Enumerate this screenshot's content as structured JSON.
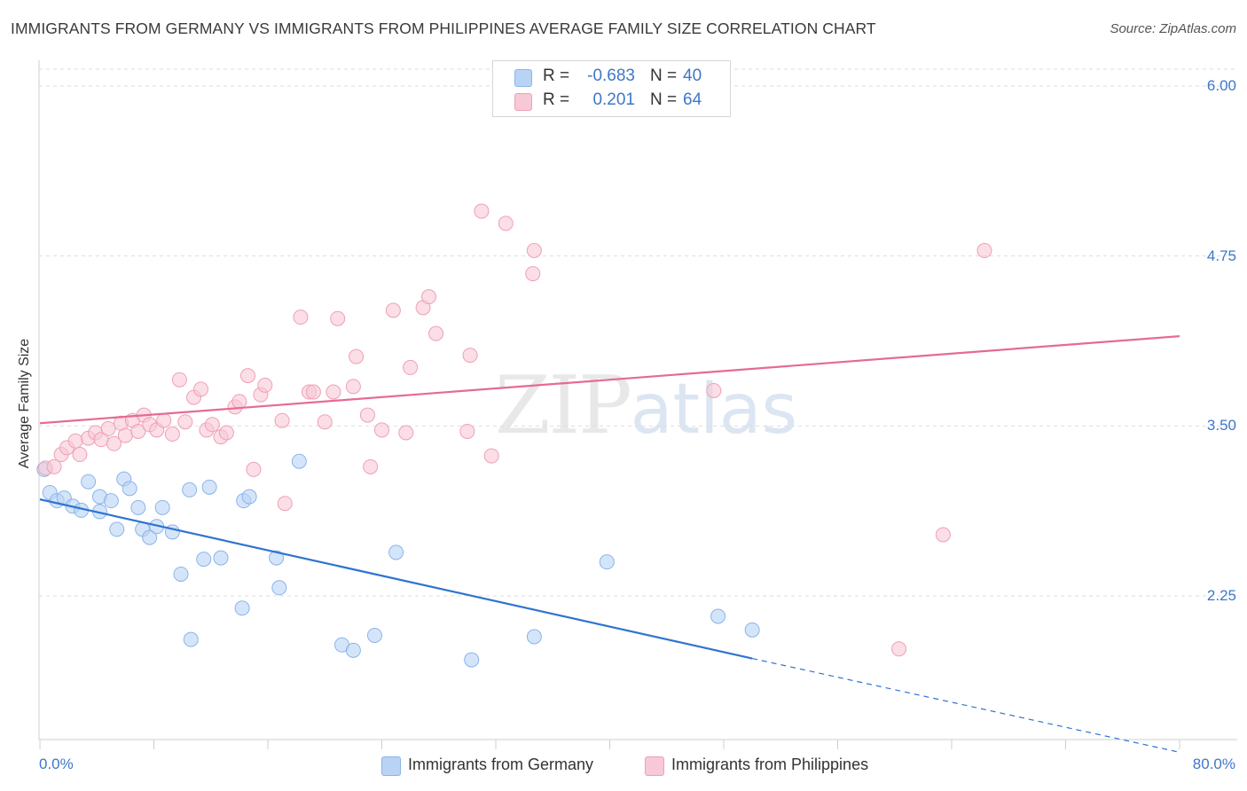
{
  "title": "IMMIGRANTS FROM GERMANY VS IMMIGRANTS FROM PHILIPPINES AVERAGE FAMILY SIZE CORRELATION CHART",
  "source": "Source: ZipAtlas.com",
  "watermark": {
    "zip": "ZIP",
    "atlas": "atlas"
  },
  "legend_top": {
    "rows": [
      {
        "r_label": "R =",
        "r_value": "-0.683",
        "n_label": "N =",
        "n_value": "40"
      },
      {
        "r_label": "R =",
        "r_value": "0.201",
        "n_label": "N =",
        "n_value": "64"
      }
    ]
  },
  "legend_bottom": {
    "germany": "Immigrants from Germany",
    "philippines": "Immigrants from Philippines"
  },
  "colors": {
    "germany_fill": "#b9d3f5",
    "germany_stroke": "#8ab4ea",
    "germany_line": "#2f74d0",
    "philippines_fill": "#f8c8d6",
    "philippines_stroke": "#eea0b8",
    "philippines_line": "#e56b93",
    "tick_text": "#3e77c9",
    "grid": "#dedede"
  },
  "chart_data": {
    "type": "scatter",
    "title": "IMMIGRANTS FROM GERMANY VS IMMIGRANTS FROM PHILIPPINES AVERAGE FAMILY SIZE CORRELATION CHART",
    "xlabel": "",
    "ylabel": "Average Family Size",
    "xlim": [
      0,
      80
    ],
    "ylim": [
      1.0,
      6.1
    ],
    "x_tick_labels": [
      "0.0%",
      "80.0%"
    ],
    "y_ticks": [
      2.25,
      3.5,
      4.75,
      6.0
    ],
    "y_tick_labels": [
      "2.25",
      "3.50",
      "4.75",
      "6.00"
    ],
    "grid": true,
    "legend_position": "top-center",
    "series": [
      {
        "name": "Immigrants from Germany",
        "r": -0.683,
        "n": 40,
        "points": [
          [
            0.3,
            3.18
          ],
          [
            0.7,
            3.01
          ],
          [
            1.2,
            2.95
          ],
          [
            1.7,
            2.97
          ],
          [
            2.3,
            2.91
          ],
          [
            2.9,
            2.88
          ],
          [
            3.4,
            3.09
          ],
          [
            4.2,
            2.87
          ],
          [
            4.2,
            2.98
          ],
          [
            5.0,
            2.95
          ],
          [
            5.4,
            2.74
          ],
          [
            5.9,
            3.11
          ],
          [
            6.3,
            3.04
          ],
          [
            6.9,
            2.9
          ],
          [
            7.2,
            2.74
          ],
          [
            7.7,
            2.68
          ],
          [
            8.2,
            2.76
          ],
          [
            8.6,
            2.9
          ],
          [
            9.3,
            2.72
          ],
          [
            9.9,
            2.41
          ],
          [
            10.5,
            3.03
          ],
          [
            10.6,
            1.93
          ],
          [
            11.5,
            2.52
          ],
          [
            11.9,
            3.05
          ],
          [
            12.7,
            2.53
          ],
          [
            14.2,
            2.16
          ],
          [
            14.3,
            2.95
          ],
          [
            14.7,
            2.98
          ],
          [
            16.6,
            2.53
          ],
          [
            16.8,
            2.31
          ],
          [
            18.2,
            3.24
          ],
          [
            21.2,
            1.89
          ],
          [
            22.0,
            1.85
          ],
          [
            23.5,
            1.96
          ],
          [
            25.0,
            2.57
          ],
          [
            30.3,
            1.78
          ],
          [
            34.7,
            1.95
          ],
          [
            39.8,
            2.5
          ],
          [
            47.6,
            2.1
          ],
          [
            50.0,
            2.0
          ]
        ],
        "trend": {
          "x0": 0,
          "y0": 2.96,
          "x1": 50,
          "y1": 1.79
        },
        "trend_dashed": {
          "x0": 50,
          "y0": 1.79,
          "x1": 80,
          "y1": 1.1
        }
      },
      {
        "name": "Immigrants from Philippines",
        "r": 0.201,
        "n": 64,
        "points": [
          [
            0.4,
            3.19
          ],
          [
            1.0,
            3.2
          ],
          [
            1.5,
            3.29
          ],
          [
            1.9,
            3.34
          ],
          [
            2.5,
            3.39
          ],
          [
            2.8,
            3.29
          ],
          [
            3.4,
            3.41
          ],
          [
            3.9,
            3.45
          ],
          [
            4.3,
            3.4
          ],
          [
            4.8,
            3.48
          ],
          [
            5.2,
            3.37
          ],
          [
            5.7,
            3.52
          ],
          [
            6.0,
            3.43
          ],
          [
            6.5,
            3.54
          ],
          [
            6.9,
            3.46
          ],
          [
            7.3,
            3.58
          ],
          [
            7.7,
            3.51
          ],
          [
            8.2,
            3.47
          ],
          [
            8.7,
            3.54
          ],
          [
            9.3,
            3.44
          ],
          [
            9.8,
            3.84
          ],
          [
            10.2,
            3.53
          ],
          [
            10.8,
            3.71
          ],
          [
            11.3,
            3.77
          ],
          [
            11.7,
            3.47
          ],
          [
            12.1,
            3.51
          ],
          [
            12.7,
            3.42
          ],
          [
            13.1,
            3.45
          ],
          [
            13.7,
            3.64
          ],
          [
            14.0,
            3.68
          ],
          [
            14.6,
            3.87
          ],
          [
            15.0,
            3.18
          ],
          [
            15.5,
            3.73
          ],
          [
            15.8,
            3.8
          ],
          [
            17.0,
            3.54
          ],
          [
            17.2,
            2.93
          ],
          [
            18.3,
            4.3
          ],
          [
            18.9,
            3.75
          ],
          [
            19.2,
            3.75
          ],
          [
            20.0,
            3.53
          ],
          [
            20.6,
            3.75
          ],
          [
            20.9,
            4.29
          ],
          [
            22.0,
            3.79
          ],
          [
            22.2,
            4.01
          ],
          [
            23.0,
            3.58
          ],
          [
            23.2,
            3.2
          ],
          [
            24.0,
            3.47
          ],
          [
            24.8,
            4.35
          ],
          [
            25.7,
            3.45
          ],
          [
            26.0,
            3.93
          ],
          [
            26.9,
            4.37
          ],
          [
            27.3,
            4.45
          ],
          [
            27.8,
            4.18
          ],
          [
            30.0,
            3.46
          ],
          [
            30.2,
            4.02
          ],
          [
            31.0,
            5.08
          ],
          [
            31.7,
            3.28
          ],
          [
            32.7,
            4.99
          ],
          [
            34.6,
            4.62
          ],
          [
            34.7,
            4.79
          ],
          [
            47.3,
            3.76
          ],
          [
            60.3,
            1.86
          ],
          [
            63.4,
            2.7
          ],
          [
            66.3,
            4.79
          ]
        ],
        "trend": {
          "x0": 0,
          "y0": 3.52,
          "x1": 80,
          "y1": 4.16
        }
      }
    ]
  }
}
